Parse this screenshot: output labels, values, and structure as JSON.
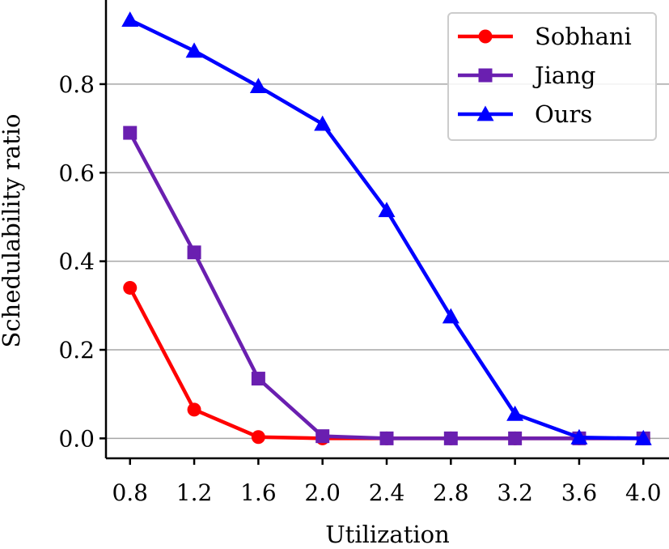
{
  "chart_data": {
    "type": "line",
    "title": "",
    "xlabel": "Utilization",
    "ylabel": "Schedulability ratio",
    "x": [
      0.8,
      1.2,
      1.6,
      2.0,
      2.4,
      2.8,
      3.2,
      3.6,
      4.0
    ],
    "x_tick_labels": [
      "0.8",
      "1.2",
      "1.6",
      "2.0",
      "2.4",
      "2.8",
      "3.2",
      "3.6",
      "4.0"
    ],
    "y_ticks": [
      0.0,
      0.2,
      0.4,
      0.6,
      0.8
    ],
    "y_tick_labels": [
      "0.0",
      "0.2",
      "0.4",
      "0.6",
      "0.8"
    ],
    "xlim": [
      0.65,
      4.16
    ],
    "ylim": [
      -0.045,
      0.99
    ],
    "grid": "horizontal",
    "legend_position": "top-right",
    "series": [
      {
        "name": "Sobhani",
        "color": "#ff0000",
        "marker": "circle",
        "values": [
          0.34,
          0.065,
          0.003,
          0.0,
          0.0,
          0.0,
          0.0,
          0.0,
          0.0
        ]
      },
      {
        "name": "Jiang",
        "color": "#6a1fb0",
        "marker": "square",
        "values": [
          0.69,
          0.42,
          0.135,
          0.005,
          0.0,
          0.0,
          0.0,
          0.0,
          0.0
        ]
      },
      {
        "name": "Ours",
        "color": "#0000ff",
        "marker": "triangle",
        "values": [
          0.945,
          0.875,
          0.795,
          0.71,
          0.515,
          0.275,
          0.055,
          0.002,
          0.0
        ]
      }
    ]
  }
}
